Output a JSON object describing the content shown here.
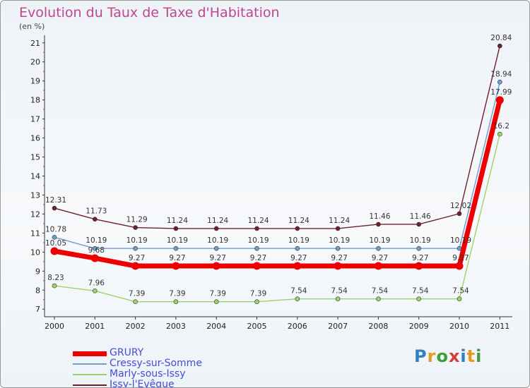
{
  "header": {
    "title": "Evolution du Taux de Taxe d'Habitation",
    "subtitle": "(en %)"
  },
  "brand": {
    "letters": [
      {
        "ch": "P",
        "color": "#2f7fc8"
      },
      {
        "ch": "r",
        "color": "#e39a21"
      },
      {
        "ch": "o",
        "color": "#3aa03a"
      },
      {
        "ch": "x",
        "color": "#d33b3b"
      },
      {
        "ch": "i",
        "color": "#2f7fc8"
      },
      {
        "ch": "t",
        "color": "#e39a21"
      },
      {
        "ch": "i",
        "color": "#3aa03a"
      }
    ]
  },
  "chart_data": {
    "type": "line",
    "title": "Evolution du Taux de Taxe d'Habitation",
    "subtitle": "(en %)",
    "xlabel": "",
    "ylabel": "",
    "x": [
      "2000",
      "2001",
      "2002",
      "2003",
      "2004",
      "2005",
      "2006",
      "2007",
      "2008",
      "2009",
      "2010",
      "2011"
    ],
    "yticks": [
      7,
      8,
      9,
      10,
      11,
      12,
      13,
      14,
      15,
      16,
      17,
      18,
      19,
      20,
      21
    ],
    "ylim": [
      6.6,
      21.4
    ],
    "grid": false,
    "legend_position": "bottom-left",
    "series": [
      {
        "name": "Issy-l'Evêque",
        "color": "#6e1f2b",
        "width": 1.4,
        "marker": 3,
        "values": [
          12.31,
          11.73,
          11.29,
          11.24,
          11.24,
          11.24,
          11.24,
          11.24,
          11.46,
          11.46,
          12.02,
          20.84
        ],
        "labels": [
          "12.31",
          "11.73",
          "11.29",
          "11.24",
          "11.24",
          "11.24",
          "11.24",
          "11.24",
          "11.46",
          "11.46",
          "12.02",
          "20.84"
        ]
      },
      {
        "name": "Cressy-sur-Somme",
        "color": "#6b9fd2",
        "width": 1.4,
        "marker": 3,
        "values": [
          10.78,
          10.19,
          10.19,
          10.19,
          10.19,
          10.19,
          10.19,
          10.19,
          10.19,
          10.19,
          10.19,
          18.94
        ],
        "labels": [
          "10.78",
          "10.19",
          "10.19",
          "10.19",
          "10.19",
          "10.19",
          "10.19",
          "10.19",
          "10.19",
          "10.19",
          "10.19",
          "18.94"
        ]
      },
      {
        "name": "Marly-sous-Issy",
        "color": "#9ad46a",
        "width": 1.4,
        "marker": 3,
        "values": [
          8.23,
          7.96,
          7.39,
          7.39,
          7.39,
          7.39,
          7.54,
          7.54,
          7.54,
          7.54,
          7.54,
          16.2
        ],
        "labels": [
          "8.23",
          "7.96",
          "7.39",
          "7.39",
          "7.39",
          "7.39",
          "7.54",
          "7.54",
          "7.54",
          "7.54",
          "7.54",
          "16.2"
        ]
      },
      {
        "name": "GRURY",
        "color": "#ee0000",
        "width": 7,
        "marker": 5.5,
        "values": [
          10.05,
          9.68,
          9.27,
          9.27,
          9.27,
          9.27,
          9.27,
          9.27,
          9.27,
          9.27,
          9.27,
          17.99
        ],
        "labels": [
          "10.05",
          "9.68",
          "9.27",
          "9.27",
          "9.27",
          "9.27",
          "9.27",
          "9.27",
          "9.27",
          "9.27",
          "9.27",
          "17.99"
        ]
      }
    ],
    "legend": [
      {
        "name": "GRURY",
        "color": "#ee0000",
        "text_color": "#3f4fd6"
      },
      {
        "name": "Cressy-sur-Somme",
        "color": "#6b9fd2",
        "text_color": "#3f4fd6"
      },
      {
        "name": "Marly-sous-Issy",
        "color": "#9ad46a",
        "text_color": "#3f4fd6"
      },
      {
        "name": "Issy-l'Evêque",
        "color": "#6e1f2b",
        "text_color": "#3f4fd6"
      }
    ]
  }
}
